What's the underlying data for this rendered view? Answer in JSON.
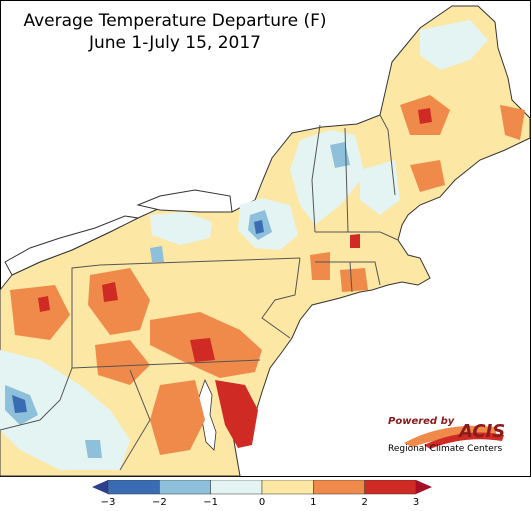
{
  "title": {
    "line1": "Average Temperature Departure (F)",
    "line2": "June 1-July 15, 2017"
  },
  "logo": {
    "powered_by": "Powered by",
    "name": "ACIS",
    "subtitle": "Regional Climate Centers"
  },
  "legend": {
    "ticks": [
      "−3",
      "−2",
      "−1",
      "0",
      "1",
      "2",
      "3"
    ],
    "colors": [
      "#3a6cb3",
      "#8fc0db",
      "#e3f4f3",
      "#fde7a4",
      "#f08a4b",
      "#cf2a24"
    ],
    "arrow_low_color": "#2f3f8f",
    "arrow_high_color": "#a50f25"
  },
  "colors": {
    "land_base": "#fde7a4",
    "water": "#ffffff",
    "warm": "#f08a4b",
    "hot": "#cf2a24",
    "cool": "#e3f4f3",
    "cold": "#8fc0db",
    "coldest": "#3a6cb3",
    "state_border": "#555555"
  }
}
